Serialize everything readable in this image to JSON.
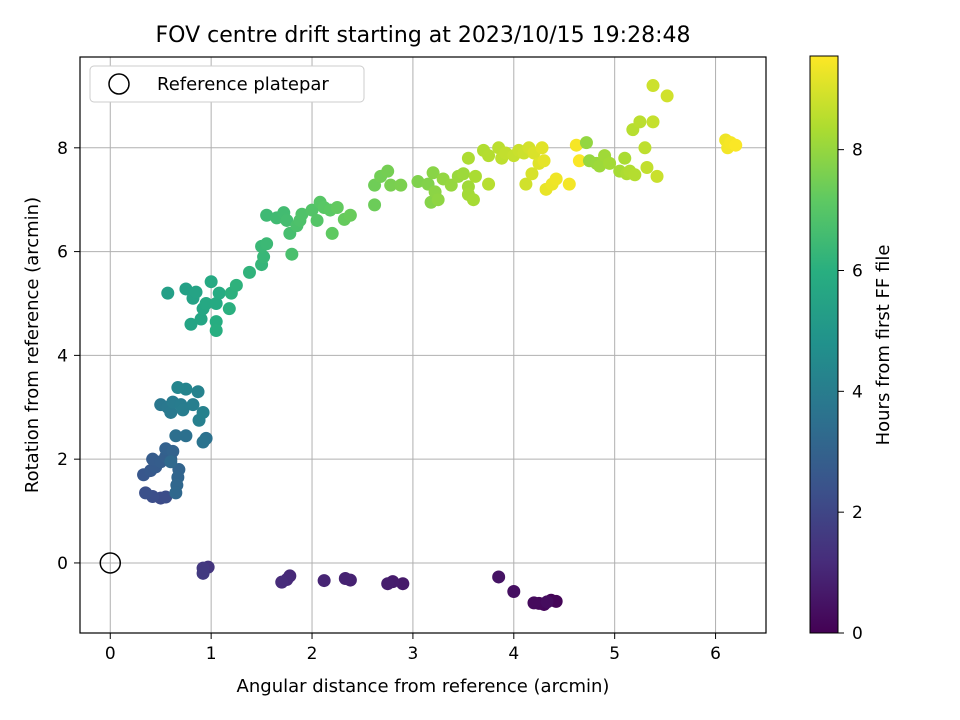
{
  "chart_data": {
    "type": "scatter",
    "title": "FOV centre drift starting at 2023/10/15 19:28:48",
    "xlabel": "Angular distance from reference (arcmin)",
    "ylabel": "Rotation from reference (arcmin)",
    "xlim": [
      -0.3,
      6.5
    ],
    "ylim": [
      -1.35,
      9.75
    ],
    "xticks": [
      0,
      1,
      2,
      3,
      4,
      5,
      6
    ],
    "yticks": [
      0,
      2,
      4,
      6,
      8
    ],
    "grid": true,
    "legend": {
      "placement": "upper-left",
      "entries": [
        "Reference platepar"
      ]
    },
    "reference_point": {
      "x": 0,
      "y": 0
    },
    "colorbar": {
      "label": "Hours from first FF file",
      "range": [
        0,
        9.55
      ],
      "ticks": [
        0,
        2,
        4,
        6,
        8
      ],
      "colormap": "viridis"
    },
    "points": [
      [
        4.37,
        -0.72,
        0.05
      ],
      [
        4.42,
        -0.74,
        0.1
      ],
      [
        4.3,
        -0.8,
        0.15
      ],
      [
        4.25,
        -0.78,
        0.2
      ],
      [
        4.2,
        -0.77,
        0.25
      ],
      [
        4.33,
        -0.75,
        0.3
      ],
      [
        4.0,
        -0.55,
        0.4
      ],
      [
        3.85,
        -0.27,
        0.5
      ],
      [
        2.9,
        -0.4,
        0.7
      ],
      [
        2.8,
        -0.36,
        0.75
      ],
      [
        2.75,
        -0.4,
        0.8
      ],
      [
        2.38,
        -0.33,
        0.9
      ],
      [
        2.33,
        -0.3,
        0.95
      ],
      [
        2.12,
        -0.34,
        1.0
      ],
      [
        1.78,
        -0.25,
        1.1
      ],
      [
        1.75,
        -0.32,
        1.15
      ],
      [
        1.7,
        -0.37,
        1.2
      ],
      [
        0.97,
        -0.08,
        1.5
      ],
      [
        0.92,
        -0.1,
        1.6
      ],
      [
        0.92,
        -0.2,
        1.65
      ],
      [
        0.5,
        1.25,
        2.2
      ],
      [
        0.55,
        1.27,
        2.25
      ],
      [
        0.42,
        1.28,
        2.3
      ],
      [
        0.35,
        1.35,
        2.35
      ],
      [
        0.33,
        1.7,
        2.6
      ],
      [
        0.4,
        1.78,
        2.7
      ],
      [
        0.45,
        1.85,
        2.75
      ],
      [
        0.42,
        2.0,
        2.8
      ],
      [
        0.5,
        1.95,
        2.85
      ],
      [
        0.55,
        2.05,
        2.9
      ],
      [
        0.6,
        2.0,
        2.95
      ],
      [
        0.55,
        2.2,
        3.0
      ],
      [
        0.62,
        2.15,
        3.05
      ],
      [
        0.68,
        1.8,
        3.1
      ],
      [
        0.67,
        1.65,
        3.15
      ],
      [
        0.66,
        1.5,
        3.2
      ],
      [
        0.65,
        1.35,
        3.25
      ],
      [
        0.6,
        1.95,
        3.3
      ],
      [
        0.65,
        2.45,
        3.5
      ],
      [
        0.75,
        2.45,
        3.55
      ],
      [
        0.95,
        2.4,
        3.6
      ],
      [
        0.92,
        2.33,
        3.65
      ],
      [
        0.5,
        3.05,
        3.8
      ],
      [
        0.57,
        3.0,
        3.85
      ],
      [
        0.6,
        2.9,
        3.9
      ],
      [
        0.62,
        3.1,
        3.95
      ],
      [
        0.7,
        3.05,
        4.0
      ],
      [
        0.72,
        2.95,
        4.05
      ],
      [
        0.82,
        3.05,
        4.1
      ],
      [
        0.88,
        2.75,
        4.15
      ],
      [
        0.92,
        2.9,
        4.2
      ],
      [
        0.87,
        3.3,
        4.25
      ],
      [
        0.75,
        3.35,
        4.3
      ],
      [
        0.67,
        3.38,
        4.35
      ],
      [
        0.57,
        5.2,
        5.4
      ],
      [
        0.75,
        5.28,
        5.45
      ],
      [
        0.82,
        5.1,
        5.5
      ],
      [
        0.85,
        5.22,
        5.55
      ],
      [
        0.8,
        4.6,
        5.6
      ],
      [
        0.9,
        4.7,
        5.65
      ],
      [
        0.92,
        4.9,
        5.7
      ],
      [
        0.95,
        5.0,
        5.75
      ],
      [
        1.0,
        5.42,
        5.8
      ],
      [
        1.05,
        5.0,
        5.85
      ],
      [
        1.08,
        5.2,
        5.9
      ],
      [
        1.05,
        4.65,
        5.95
      ],
      [
        1.05,
        4.48,
        6.0
      ],
      [
        1.18,
        4.9,
        6.05
      ],
      [
        1.2,
        5.2,
        6.1
      ],
      [
        1.25,
        5.35,
        6.15
      ],
      [
        1.38,
        5.6,
        6.2
      ],
      [
        1.5,
        5.75,
        6.3
      ],
      [
        1.52,
        5.9,
        6.35
      ],
      [
        1.5,
        6.1,
        6.4
      ],
      [
        1.55,
        6.15,
        6.45
      ],
      [
        1.55,
        6.7,
        6.5
      ],
      [
        1.65,
        6.65,
        6.55
      ],
      [
        1.72,
        6.75,
        6.6
      ],
      [
        1.75,
        6.6,
        6.65
      ],
      [
        1.78,
        6.35,
        6.7
      ],
      [
        1.8,
        5.95,
        6.75
      ],
      [
        1.85,
        6.5,
        6.8
      ],
      [
        1.88,
        6.6,
        6.85
      ],
      [
        1.9,
        6.72,
        6.9
      ],
      [
        2.0,
        6.8,
        6.95
      ],
      [
        2.05,
        6.6,
        7.0
      ],
      [
        2.08,
        6.95,
        7.05
      ],
      [
        2.12,
        6.85,
        7.1
      ],
      [
        2.18,
        6.8,
        7.15
      ],
      [
        2.2,
        6.35,
        7.2
      ],
      [
        2.25,
        6.85,
        7.25
      ],
      [
        2.32,
        6.62,
        7.3
      ],
      [
        2.38,
        6.7,
        7.35
      ],
      [
        2.62,
        6.9,
        7.4
      ],
      [
        2.62,
        7.28,
        7.45
      ],
      [
        2.68,
        7.45,
        7.5
      ],
      [
        2.75,
        7.55,
        7.55
      ],
      [
        2.78,
        7.28,
        7.6
      ],
      [
        2.88,
        7.28,
        7.65
      ],
      [
        3.05,
        7.35,
        7.7
      ],
      [
        3.15,
        7.3,
        7.75
      ],
      [
        3.18,
        6.95,
        7.8
      ],
      [
        3.2,
        7.52,
        7.85
      ],
      [
        3.22,
        7.15,
        7.9
      ],
      [
        3.25,
        7.0,
        7.95
      ],
      [
        3.3,
        7.4,
        8.0
      ],
      [
        3.38,
        7.28,
        8.05
      ],
      [
        3.45,
        7.45,
        8.1
      ],
      [
        3.5,
        7.5,
        8.15
      ],
      [
        3.55,
        7.25,
        8.2
      ],
      [
        3.55,
        7.1,
        8.25
      ],
      [
        3.6,
        7.0,
        8.3
      ],
      [
        3.62,
        7.45,
        8.35
      ],
      [
        3.55,
        7.8,
        8.4
      ],
      [
        3.7,
        7.95,
        8.45
      ],
      [
        3.75,
        7.85,
        8.5
      ],
      [
        3.75,
        7.3,
        8.55
      ],
      [
        3.85,
        8.0,
        8.6
      ],
      [
        3.88,
        7.8,
        8.65
      ],
      [
        3.92,
        7.9,
        8.7
      ],
      [
        4.0,
        7.85,
        8.75
      ],
      [
        4.05,
        7.95,
        8.8
      ],
      [
        4.1,
        7.9,
        8.85
      ],
      [
        4.12,
        7.3,
        8.9
      ],
      [
        4.15,
        8.0,
        8.95
      ],
      [
        4.18,
        7.5,
        9.0
      ],
      [
        4.2,
        7.9,
        9.05
      ],
      [
        4.25,
        7.7,
        9.1
      ],
      [
        4.28,
        8.0,
        9.15
      ],
      [
        4.3,
        7.75,
        9.2
      ],
      [
        4.32,
        7.2,
        9.25
      ],
      [
        4.38,
        7.3,
        9.3
      ],
      [
        4.42,
        7.4,
        9.35
      ],
      [
        4.55,
        7.3,
        9.4
      ],
      [
        4.62,
        8.05,
        9.45
      ],
      [
        4.65,
        7.75,
        9.5
      ],
      [
        4.72,
        8.1,
        8.0
      ],
      [
        4.75,
        7.75,
        8.05
      ],
      [
        4.82,
        7.7,
        8.1
      ],
      [
        4.85,
        7.65,
        8.15
      ],
      [
        4.9,
        7.85,
        8.2
      ],
      [
        4.95,
        7.7,
        8.25
      ],
      [
        5.05,
        7.55,
        8.3
      ],
      [
        5.1,
        7.8,
        8.35
      ],
      [
        5.12,
        7.5,
        8.4
      ],
      [
        5.15,
        7.55,
        8.45
      ],
      [
        5.2,
        7.48,
        8.5
      ],
      [
        5.18,
        8.35,
        8.55
      ],
      [
        5.25,
        8.5,
        8.6
      ],
      [
        5.3,
        8.0,
        8.65
      ],
      [
        5.32,
        7.62,
        8.7
      ],
      [
        5.38,
        8.5,
        8.75
      ],
      [
        5.42,
        7.45,
        8.8
      ],
      [
        5.38,
        9.2,
        8.85
      ],
      [
        5.52,
        9.0,
        8.9
      ],
      [
        6.1,
        8.15,
        9.35
      ],
      [
        6.12,
        8.0,
        9.4
      ],
      [
        6.15,
        8.1,
        9.45
      ],
      [
        6.2,
        8.05,
        9.5
      ]
    ]
  }
}
